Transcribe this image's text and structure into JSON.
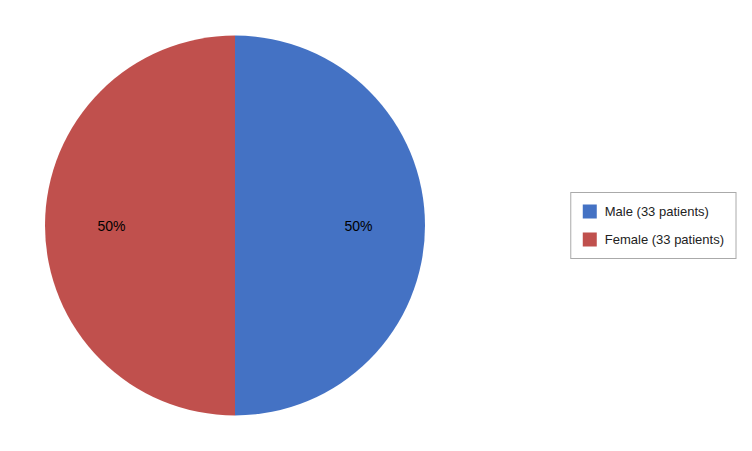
{
  "chart_data": {
    "type": "pie",
    "categories": [
      "Male (33 patients)",
      "Female (33 patients)"
    ],
    "values": [
      50,
      50
    ],
    "value_labels": [
      "50%",
      "50%"
    ],
    "colors": [
      "#4472C4",
      "#C0504D"
    ],
    "data_labels": true,
    "legend": "right"
  }
}
